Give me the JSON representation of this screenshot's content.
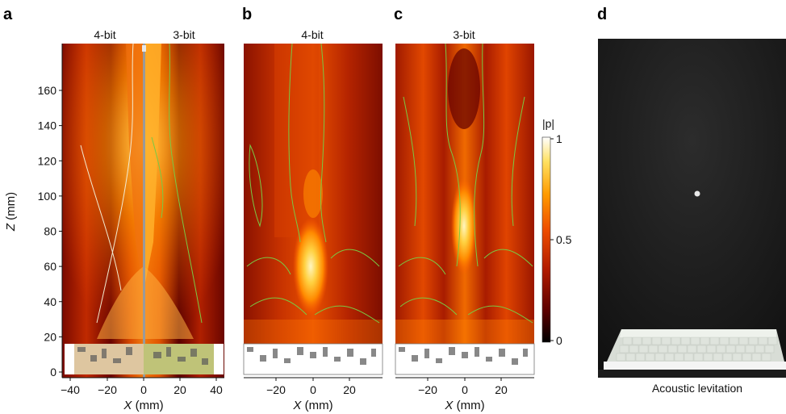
{
  "panels": {
    "a": {
      "label": "a",
      "title_left": "4-bit",
      "title_right": "3-bit"
    },
    "b": {
      "label": "b",
      "title": "4-bit"
    },
    "c": {
      "label": "c",
      "title": "3-bit"
    },
    "d": {
      "label": "d",
      "caption": "Acoustic levitation"
    }
  },
  "axes": {
    "z_label_var": "Z",
    "z_label_unit": " (mm)",
    "x_label_var": "X",
    "x_label_unit": " (mm)",
    "z_ticks": [
      "0",
      "20",
      "40",
      "60",
      "80",
      "100",
      "120",
      "140",
      "160"
    ],
    "x_ticks_a": [
      "−40",
      "−20",
      "0",
      "20",
      "40"
    ],
    "x_ticks_bc": [
      "−20",
      "0",
      "20"
    ]
  },
  "colorbar": {
    "label": "|p|",
    "ticks": [
      "1",
      "0.5",
      "0"
    ],
    "colors": [
      "#000000",
      "#5a0000",
      "#b01a00",
      "#ee4d00",
      "#ff9a00",
      "#ffe060",
      "#ffffff"
    ]
  },
  "contour_colors": {
    "simulated_4bit": "#f2ead0",
    "measured": "#7ac943"
  },
  "chart_data": [
    {
      "type": "heatmap",
      "panel": "a",
      "x_range": [
        -45,
        45
      ],
      "y_range": [
        0,
        180
      ],
      "xlabel": "X (mm)",
      "ylabel": "Z (mm)"
    },
    {
      "type": "heatmap",
      "panel": "b",
      "x_range": [
        -38,
        38
      ],
      "y_range": [
        0,
        180
      ],
      "xlabel": "X (mm)",
      "colorbar_range": [
        0,
        1
      ]
    },
    {
      "type": "heatmap",
      "panel": "c",
      "x_range": [
        -38,
        38
      ],
      "y_range": [
        0,
        180
      ],
      "xlabel": "X (mm)",
      "colorbar_range": [
        0,
        1
      ]
    }
  ]
}
